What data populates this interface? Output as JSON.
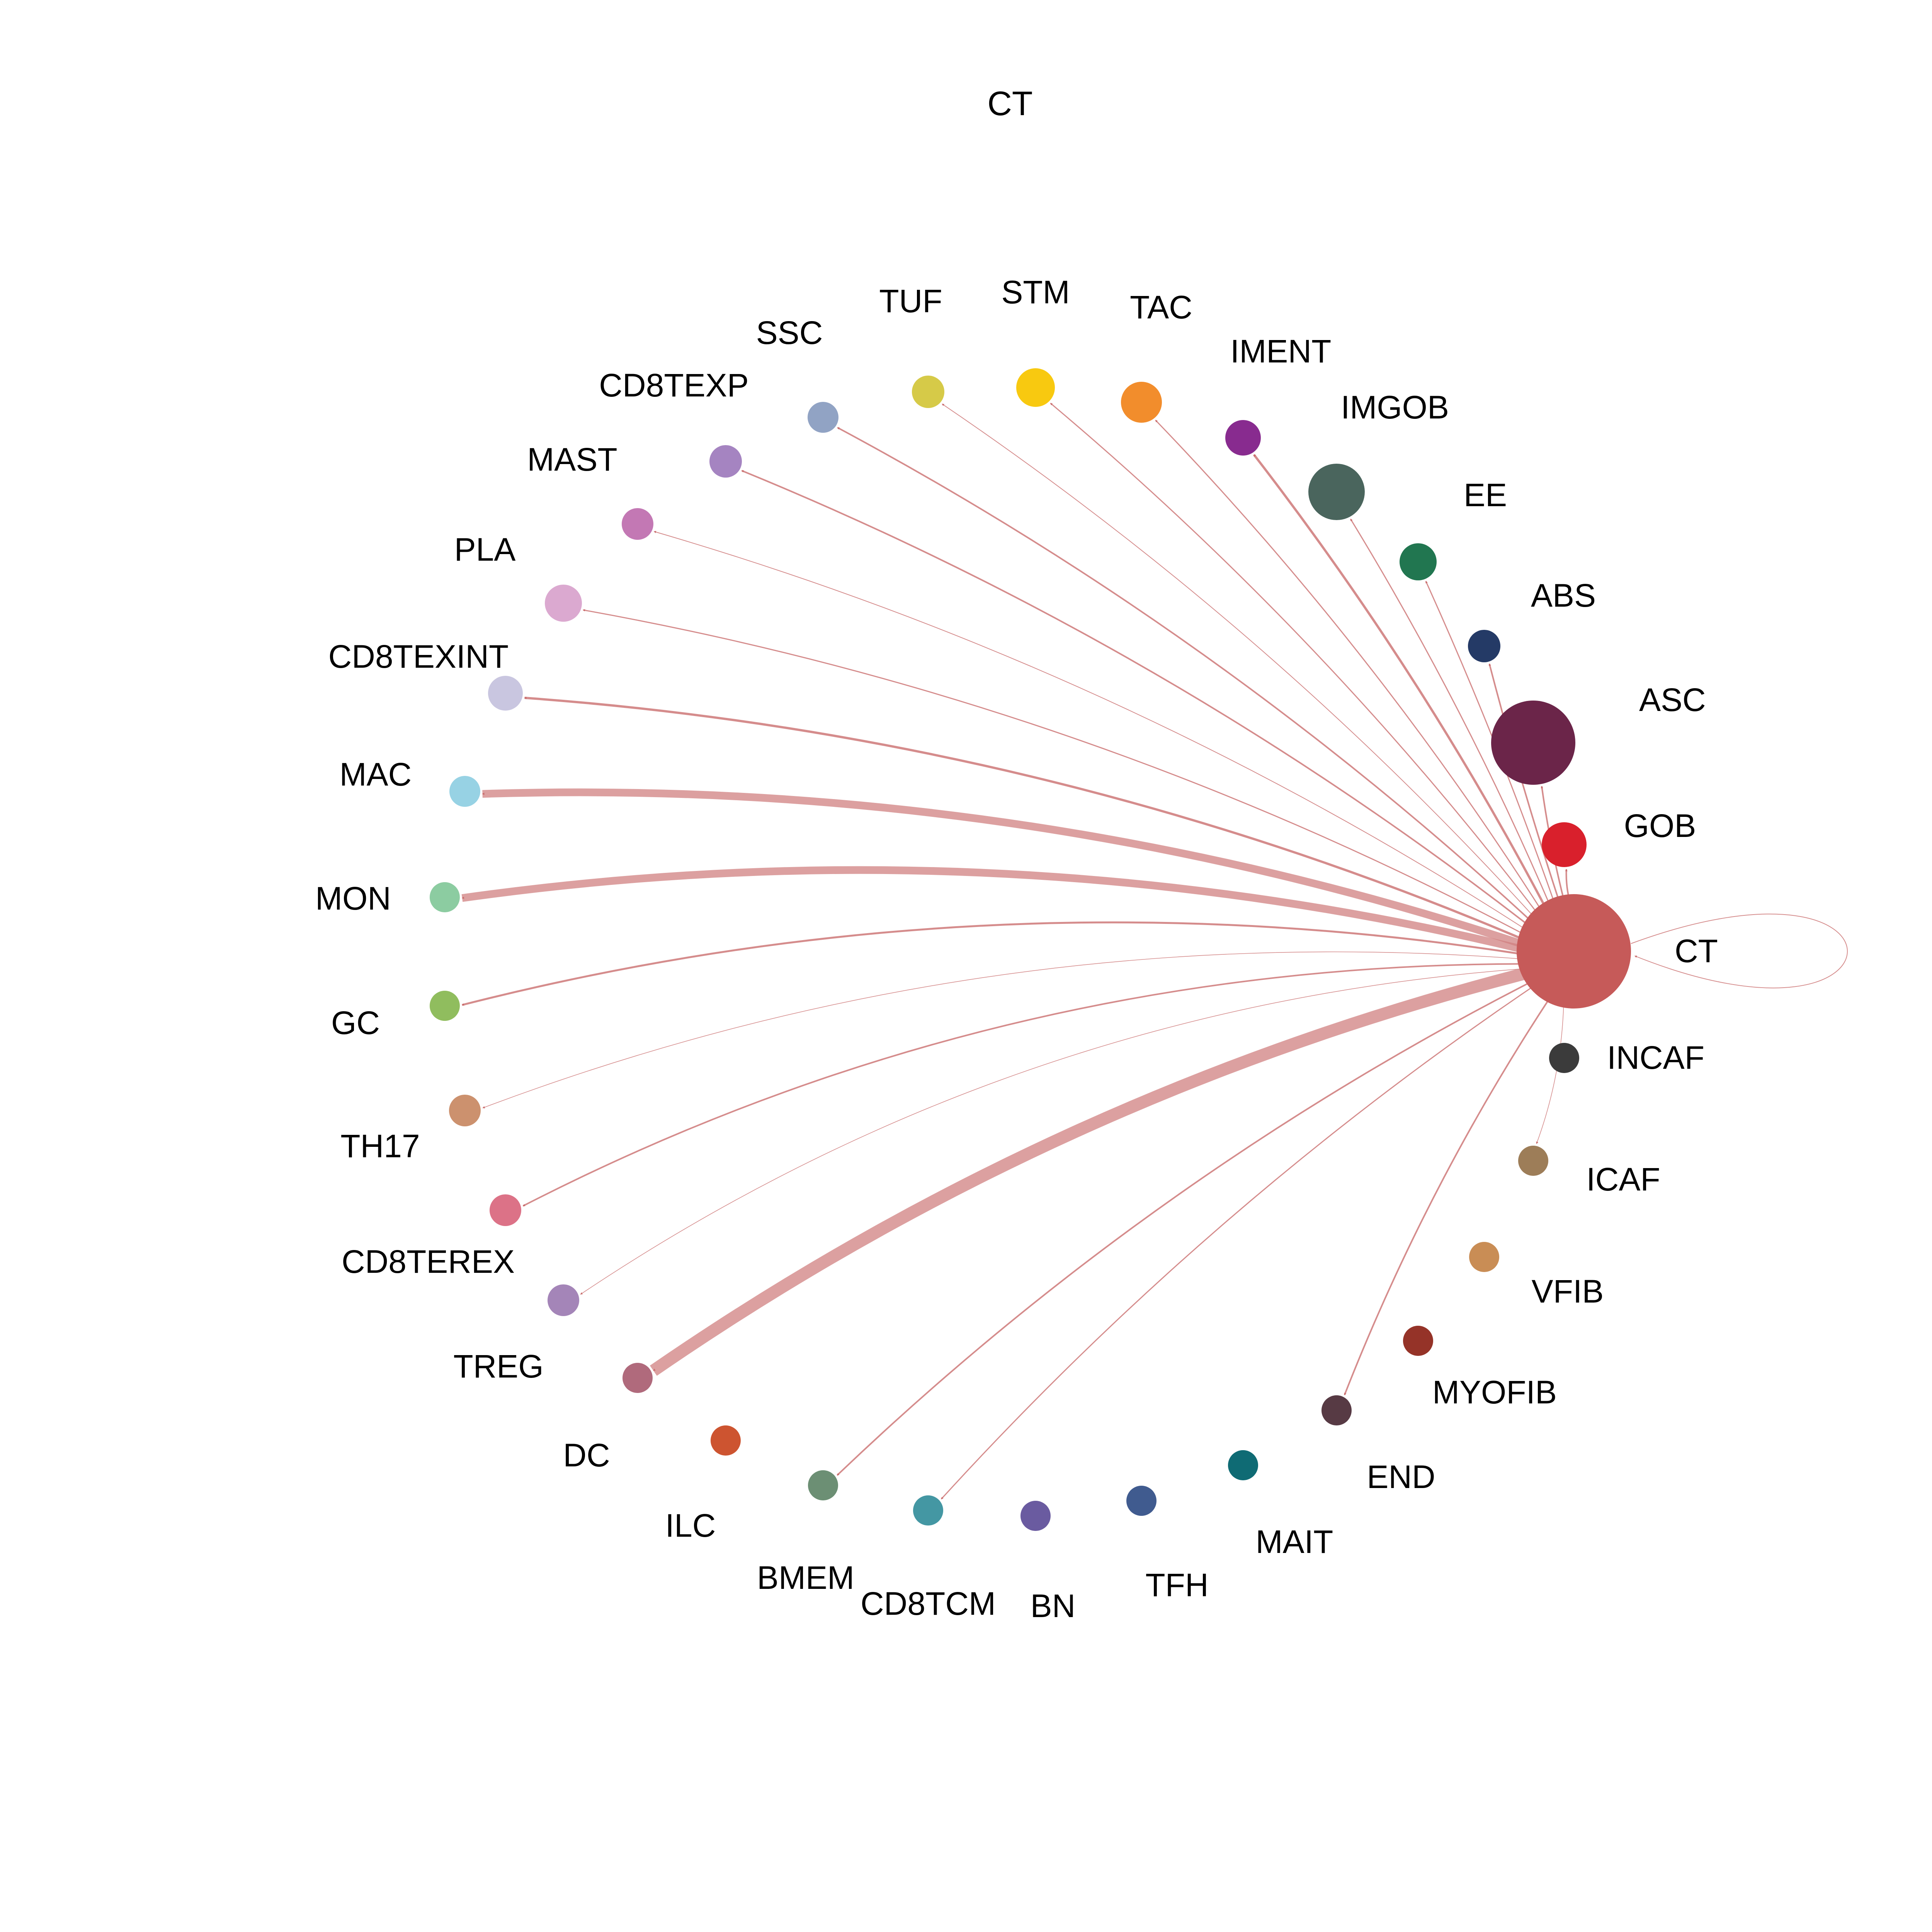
{
  "title": "CT",
  "edge_color": "#d08080",
  "source": "CT",
  "nodes": [
    {
      "id": "ASC",
      "color": "#6b2549"
    },
    {
      "id": "ABS",
      "color": "#243a66"
    },
    {
      "id": "EE",
      "color": "#217650"
    },
    {
      "id": "IMGOB",
      "color": "#4a655d"
    },
    {
      "id": "IMENT",
      "color": "#882b8f"
    },
    {
      "id": "TAC",
      "color": "#f28d2c"
    },
    {
      "id": "STM",
      "color": "#f8c910"
    },
    {
      "id": "TUF",
      "color": "#d6ca48"
    },
    {
      "id": "SSC",
      "color": "#91a3c4"
    },
    {
      "id": "CD8TEXP",
      "color": "#a584c1"
    },
    {
      "id": "MAST",
      "color": "#c378b4"
    },
    {
      "id": "PLA",
      "color": "#dba9d0"
    },
    {
      "id": "CD8TEXINT",
      "color": "#c9c6e0"
    },
    {
      "id": "MAC",
      "color": "#97d2e4"
    },
    {
      "id": "MON",
      "color": "#8ccca1"
    },
    {
      "id": "GC",
      "color": "#90bd5e"
    },
    {
      "id": "TH17",
      "color": "#cc916e"
    },
    {
      "id": "CD8TEREX",
      "color": "#dc7287"
    },
    {
      "id": "TREG",
      "color": "#a485b8"
    },
    {
      "id": "DC",
      "color": "#b06a7c"
    },
    {
      "id": "ILC",
      "color": "#cd5430"
    },
    {
      "id": "BMEM",
      "color": "#6c8f74"
    },
    {
      "id": "CD8TCM",
      "color": "#4497a3"
    },
    {
      "id": "BN",
      "color": "#6a5ba0"
    },
    {
      "id": "TFH",
      "color": "#405b8f"
    },
    {
      "id": "MAIT",
      "color": "#0f6b74"
    },
    {
      "id": "END",
      "color": "#573a44"
    },
    {
      "id": "MYOFIB",
      "color": "#953328"
    },
    {
      "id": "VFIB",
      "color": "#c98d55"
    },
    {
      "id": "ICAF",
      "color": "#9d7d58"
    },
    {
      "id": "INCAF",
      "color": "#3b3b3b"
    },
    {
      "id": "CT",
      "color": "#c65a59"
    },
    {
      "id": "GOB",
      "color": "#d9202c"
    }
  ],
  "edges": [
    {
      "target": "ASC",
      "weight": 2
    },
    {
      "target": "ABS",
      "weight": 2
    },
    {
      "target": "EE",
      "weight": 1.5
    },
    {
      "target": "IMGOB",
      "weight": 1.5
    },
    {
      "target": "IMENT",
      "weight": 3
    },
    {
      "target": "TAC",
      "weight": 1.5
    },
    {
      "target": "STM",
      "weight": 1.5
    },
    {
      "target": "TUF",
      "weight": 1
    },
    {
      "target": "SSC",
      "weight": 2
    },
    {
      "target": "CD8TEXP",
      "weight": 2
    },
    {
      "target": "MAST",
      "weight": 1
    },
    {
      "target": "PLA",
      "weight": 1.5
    },
    {
      "target": "CD8TEXINT",
      "weight": 3
    },
    {
      "target": "MAC",
      "weight": 10
    },
    {
      "target": "MON",
      "weight": 10
    },
    {
      "target": "GC",
      "weight": 2.5
    },
    {
      "target": "TH17",
      "weight": 0.8
    },
    {
      "target": "CD8TEREX",
      "weight": 2
    },
    {
      "target": "TREG",
      "weight": 0.8
    },
    {
      "target": "DC",
      "weight": 16
    },
    {
      "target": "BMEM",
      "weight": 2
    },
    {
      "target": "CD8TCM",
      "weight": 1.5
    },
    {
      "target": "END",
      "weight": 2
    },
    {
      "target": "ICAF",
      "weight": 0.8
    },
    {
      "target": "GOB",
      "weight": 2
    },
    {
      "target": "CT",
      "weight": 1,
      "loop": true
    }
  ]
}
